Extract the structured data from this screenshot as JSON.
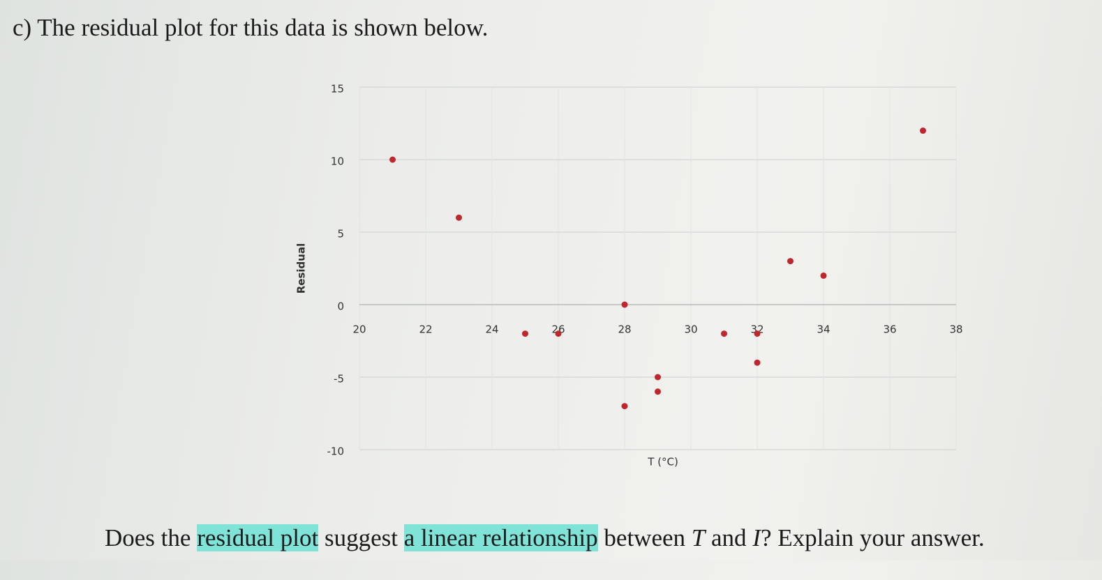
{
  "heading": "c) The residual plot for this data is shown below.",
  "question": [
    "Does the ",
    "residual plot",
    " suggest ",
    "a linear relationship",
    " between ",
    "T",
    " and ",
    "I",
    "? Explain your answer."
  ],
  "chart_data": {
    "type": "scatter",
    "x_label": "T (°C)",
    "y_label": "Residual",
    "x": [
      21,
      23,
      25,
      26,
      28,
      28,
      29,
      29,
      31,
      32,
      32,
      33,
      34,
      37
    ],
    "values": [
      10,
      6,
      -2,
      -2,
      0,
      -7,
      -5,
      -6,
      -2,
      -2,
      -4,
      3,
      2,
      12
    ],
    "color": "#c0262e",
    "xlim": [
      20,
      38
    ],
    "xticks": [
      20,
      22,
      24,
      26,
      28,
      30,
      32,
      34,
      36,
      38
    ],
    "ylim": [
      -10,
      15
    ],
    "yticks": [
      -10,
      -5,
      0,
      5,
      10,
      15
    ],
    "grid": true
  }
}
